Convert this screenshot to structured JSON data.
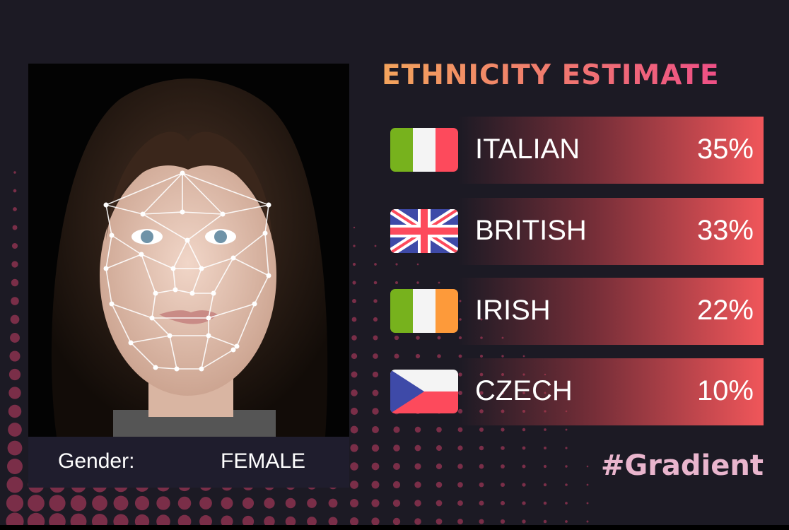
{
  "title": "ETHNICITY ESTIMATE",
  "gender": {
    "label": "Gender:",
    "value": "FEMALE"
  },
  "results": [
    {
      "name": "ITALIAN",
      "percent": "35%",
      "flag": "italy-flag-icon"
    },
    {
      "name": "BRITISH",
      "percent": "33%",
      "flag": "uk-flag-icon"
    },
    {
      "name": "IRISH",
      "percent": "22%",
      "flag": "ireland-flag-icon"
    },
    {
      "name": "CZECH",
      "percent": "10%",
      "flag": "czech-flag-icon"
    }
  ],
  "hashtag": "#Gradient",
  "colors": {
    "background": "#1c1a24",
    "bar_accent": "#f0565a",
    "dots": "#7a2e48",
    "hashtag": "#e9b5cd"
  }
}
